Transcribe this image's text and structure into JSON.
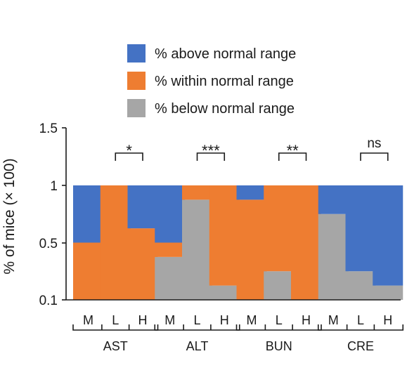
{
  "chart_data": {
    "type": "bar",
    "stacked": true,
    "ylabel": "% of mice (× 100)",
    "yticks": [
      "0.1",
      "0.5",
      "1",
      "1.5"
    ],
    "ylim": [
      0,
      1.5
    ],
    "groups": [
      {
        "label": "AST",
        "categories": [
          "M",
          "L",
          "H"
        ],
        "significance": "*"
      },
      {
        "label": "ALT",
        "categories": [
          "M",
          "L",
          "H"
        ],
        "significance": "***"
      },
      {
        "label": "BUN",
        "categories": [
          "M",
          "L",
          "H"
        ],
        "significance": "**"
      },
      {
        "label": "CRE",
        "categories": [
          "M",
          "L",
          "H"
        ],
        "significance": "ns"
      }
    ],
    "series": [
      {
        "name": "% below normal range",
        "color": "#a6a6a6",
        "values": [
          0,
          0,
          0,
          0.375,
          0.875,
          0.125,
          0,
          0.25,
          0,
          0.75,
          0.25,
          0.125
        ]
      },
      {
        "name": "% within normal range",
        "color": "#ee7d31",
        "values": [
          0.5,
          1,
          0.625,
          0.125,
          0.125,
          0.875,
          0.875,
          0.75,
          1,
          0,
          0,
          0
        ]
      },
      {
        "name": "% above normal range",
        "color": "#4472c4",
        "values": [
          0.5,
          0,
          0.375,
          0.5,
          0,
          0,
          0.125,
          0,
          0,
          0.25,
          0.75,
          0.875
        ]
      }
    ],
    "legend": {
      "position": "top",
      "entries": [
        {
          "label": "% above normal range",
          "color": "#4472c4"
        },
        {
          "label": "% within normal range",
          "color": "#ee7d31"
        },
        {
          "label": "% below normal range",
          "color": "#a6a6a6"
        }
      ]
    },
    "grid": false
  }
}
